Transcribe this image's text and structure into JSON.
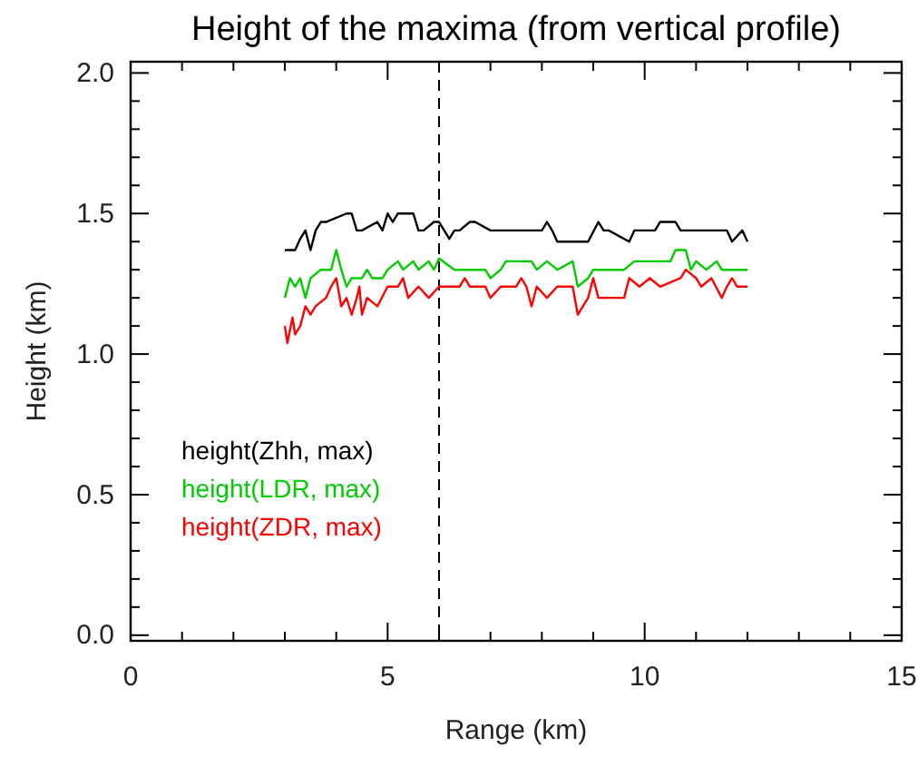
{
  "chart_data": {
    "type": "line",
    "title": "Height of the maxima (from vertical profile)",
    "xlabel": "Range (km)",
    "ylabel": "Height (km)",
    "xlim": [
      0,
      15
    ],
    "xticks": [
      0,
      {
        "value": 1,
        "label": null
      },
      {
        "value": 2,
        "label": null
      },
      {
        "value": 3,
        "label": null
      },
      {
        "value": 4,
        "label": null
      },
      5,
      {
        "value": 6,
        "label": null
      },
      {
        "value": 7,
        "label": null
      },
      {
        "value": 8,
        "label": null
      },
      {
        "value": 9,
        "label": null
      },
      10,
      {
        "value": 11,
        "label": null
      },
      {
        "value": 12,
        "label": null
      },
      {
        "value": 13,
        "label": null
      },
      {
        "value": 14,
        "label": null
      },
      15
    ],
    "ylim": [
      -0.02,
      2.04
    ],
    "yticks": [
      {
        "value": 0,
        "label": "0.0"
      },
      {
        "value": 0.1,
        "label": null
      },
      {
        "value": 0.2,
        "label": null
      },
      {
        "value": 0.3,
        "label": null
      },
      {
        "value": 0.4,
        "label": null
      },
      0.5,
      {
        "value": 0.6,
        "label": null
      },
      {
        "value": 0.7,
        "label": null
      },
      {
        "value": 0.8,
        "label": null
      },
      {
        "value": 0.9,
        "label": null
      },
      {
        "value": 1,
        "label": "1.0"
      },
      {
        "value": 1.1,
        "label": null
      },
      {
        "value": 1.2,
        "label": null
      },
      {
        "value": 1.3,
        "label": null
      },
      {
        "value": 1.4,
        "label": null
      },
      1.5,
      {
        "value": 1.6,
        "label": null
      },
      {
        "value": 1.7,
        "label": null
      },
      {
        "value": 1.8,
        "label": null
      },
      {
        "value": 1.9,
        "label": null
      },
      {
        "value": 2,
        "label": "2.0"
      }
    ],
    "grid": false,
    "legend": "bottom left",
    "line_style": "solid",
    "marker": "none",
    "ref_lines": [
      {
        "axis": "x",
        "value": 6,
        "label": null,
        "color": "#000000",
        "line_style": "dashed"
      }
    ],
    "series": [
      {
        "name": "height(Zhh, max)",
        "color": "#000000",
        "x": [
          3.0,
          3.2,
          3.3,
          3.4,
          3.5,
          3.6,
          3.7,
          3.8,
          4.2,
          4.3,
          4.4,
          4.5,
          4.8,
          4.9,
          5.0,
          5.1,
          5.2,
          5.5,
          5.6,
          5.7,
          5.9,
          6.0,
          6.2,
          6.3,
          6.4,
          6.6,
          6.7,
          7.0,
          7.1,
          8.0,
          8.1,
          8.2,
          8.3,
          8.8,
          8.9,
          9.1,
          9.2,
          9.3,
          9.7,
          9.8,
          10.2,
          10.3,
          10.6,
          10.7,
          11.6,
          11.7,
          11.9,
          12.0
        ],
        "values": [
          1.37,
          1.37,
          1.41,
          1.44,
          1.37,
          1.44,
          1.47,
          1.47,
          1.5,
          1.5,
          1.44,
          1.44,
          1.47,
          1.44,
          1.5,
          1.47,
          1.5,
          1.5,
          1.44,
          1.44,
          1.47,
          1.47,
          1.41,
          1.44,
          1.44,
          1.47,
          1.47,
          1.44,
          1.44,
          1.44,
          1.47,
          1.44,
          1.4,
          1.4,
          1.4,
          1.47,
          1.44,
          1.44,
          1.4,
          1.44,
          1.44,
          1.47,
          1.47,
          1.44,
          1.44,
          1.4,
          1.44,
          1.4
        ]
      },
      {
        "name": "height(LDR, max)",
        "color": "#00cc00",
        "x": [
          3.0,
          3.1,
          3.2,
          3.3,
          3.4,
          3.5,
          3.7,
          3.9,
          4.0,
          4.1,
          4.2,
          4.3,
          4.5,
          4.6,
          4.7,
          4.9,
          5.0,
          5.2,
          5.3,
          5.5,
          5.6,
          5.8,
          5.9,
          6.0,
          6.3,
          6.9,
          7.0,
          7.2,
          7.3,
          7.8,
          7.9,
          8.1,
          8.3,
          8.6,
          8.7,
          8.9,
          9.0,
          9.6,
          9.8,
          10.5,
          10.6,
          10.8,
          10.9,
          11.0,
          11.2,
          11.4,
          11.5,
          12.0
        ],
        "values": [
          1.2,
          1.27,
          1.24,
          1.27,
          1.2,
          1.27,
          1.3,
          1.3,
          1.37,
          1.3,
          1.24,
          1.27,
          1.27,
          1.3,
          1.27,
          1.27,
          1.3,
          1.33,
          1.3,
          1.33,
          1.3,
          1.33,
          1.3,
          1.34,
          1.3,
          1.3,
          1.27,
          1.3,
          1.33,
          1.33,
          1.3,
          1.33,
          1.3,
          1.33,
          1.24,
          1.27,
          1.3,
          1.3,
          1.33,
          1.33,
          1.37,
          1.37,
          1.3,
          1.33,
          1.3,
          1.33,
          1.3,
          1.3
        ]
      },
      {
        "name": "height(ZDR, max)",
        "color": "#ff0000",
        "x": [
          3.0,
          3.05,
          3.15,
          3.2,
          3.3,
          3.4,
          3.5,
          3.6,
          3.8,
          3.9,
          4.0,
          4.1,
          4.2,
          4.3,
          4.4,
          4.45,
          4.5,
          4.6,
          4.8,
          5.0,
          5.2,
          5.3,
          5.4,
          5.6,
          5.8,
          6.0,
          6.4,
          6.5,
          6.6,
          6.9,
          7.0,
          7.2,
          7.5,
          7.6,
          7.7,
          7.8,
          7.9,
          8.1,
          8.3,
          8.6,
          8.7,
          8.9,
          9.0,
          9.1,
          9.6,
          9.7,
          9.9,
          10.1,
          10.3,
          10.7,
          10.8,
          11.0,
          11.1,
          11.3,
          11.5,
          11.6,
          11.7,
          11.8,
          12.0
        ],
        "values": [
          1.1,
          1.04,
          1.13,
          1.07,
          1.1,
          1.17,
          1.14,
          1.17,
          1.2,
          1.24,
          1.27,
          1.17,
          1.2,
          1.14,
          1.2,
          1.24,
          1.14,
          1.2,
          1.17,
          1.24,
          1.24,
          1.27,
          1.2,
          1.24,
          1.2,
          1.24,
          1.24,
          1.27,
          1.24,
          1.24,
          1.2,
          1.24,
          1.24,
          1.27,
          1.24,
          1.17,
          1.24,
          1.2,
          1.24,
          1.24,
          1.14,
          1.2,
          1.27,
          1.2,
          1.2,
          1.27,
          1.24,
          1.27,
          1.24,
          1.27,
          1.3,
          1.27,
          1.24,
          1.27,
          1.2,
          1.24,
          1.27,
          1.24,
          1.24
        ]
      }
    ]
  }
}
